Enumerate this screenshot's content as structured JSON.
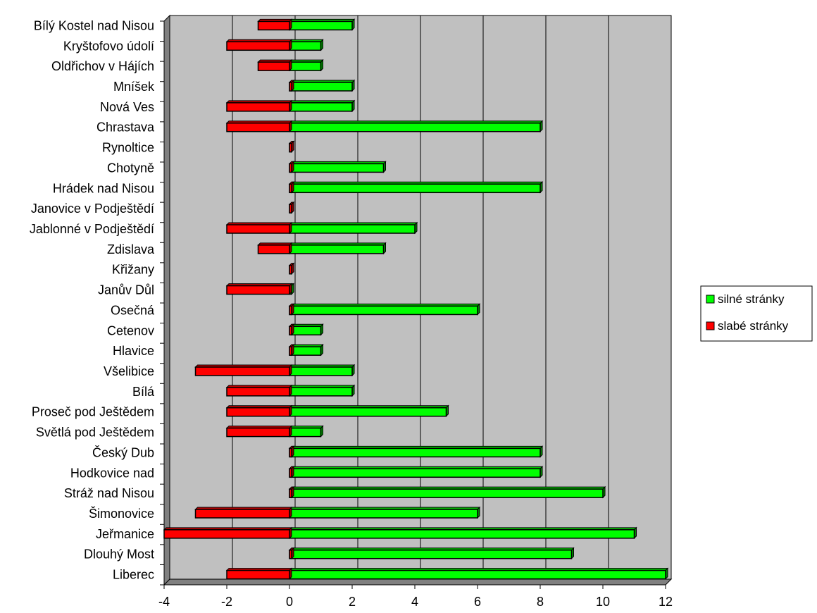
{
  "chart_data": {
    "type": "bar",
    "orientation": "horizontal",
    "categories": [
      "Bílý Kostel nad Nisou",
      "Kryštofovo údolí",
      "Oldřichov v Hájích",
      "Mníšek",
      "Nová Ves",
      "Chrastava",
      "Rynoltice",
      "Chotyně",
      "Hrádek nad Nisou",
      "Janovice v Podještědí",
      "Jablonné v Podještědí",
      "Zdislava",
      "Křižany",
      "Janův Důl",
      "Osečná",
      "Cetenov",
      "Hlavice",
      "Všelibice",
      "Bílá",
      "Proseč pod Ještědem",
      "Světlá pod Ještědem",
      "Český Dub",
      "Hodkovice nad",
      "Stráž nad Nisou",
      "Šimonovice",
      "Jeřmanice",
      "Dlouhý Most",
      "Liberec"
    ],
    "series": [
      {
        "name": "silné stránky",
        "color": "#00ff00",
        "values": [
          2,
          1,
          1,
          2,
          2,
          8,
          0,
          3,
          8,
          0,
          4,
          3,
          0,
          0,
          6,
          1,
          1,
          2,
          2,
          5,
          1,
          8,
          8,
          10,
          6,
          11,
          9,
          12
        ]
      },
      {
        "name": "slabé stránky",
        "color": "#ff0000",
        "values": [
          -1,
          -2,
          -1,
          0,
          -2,
          -2,
          0,
          0,
          0,
          0,
          -2,
          -1,
          0,
          -2,
          0,
          0,
          0,
          -3,
          -2,
          -2,
          -2,
          0,
          0,
          0,
          -3,
          -4,
          0,
          -2
        ]
      }
    ],
    "xlim": [
      -4,
      12
    ],
    "xticks": [
      "-4",
      "-2",
      "0",
      "2",
      "4",
      "6",
      "8",
      "10",
      "12"
    ],
    "grid": true,
    "legend_position": "right",
    "plot_background": "#c0c0c0"
  }
}
